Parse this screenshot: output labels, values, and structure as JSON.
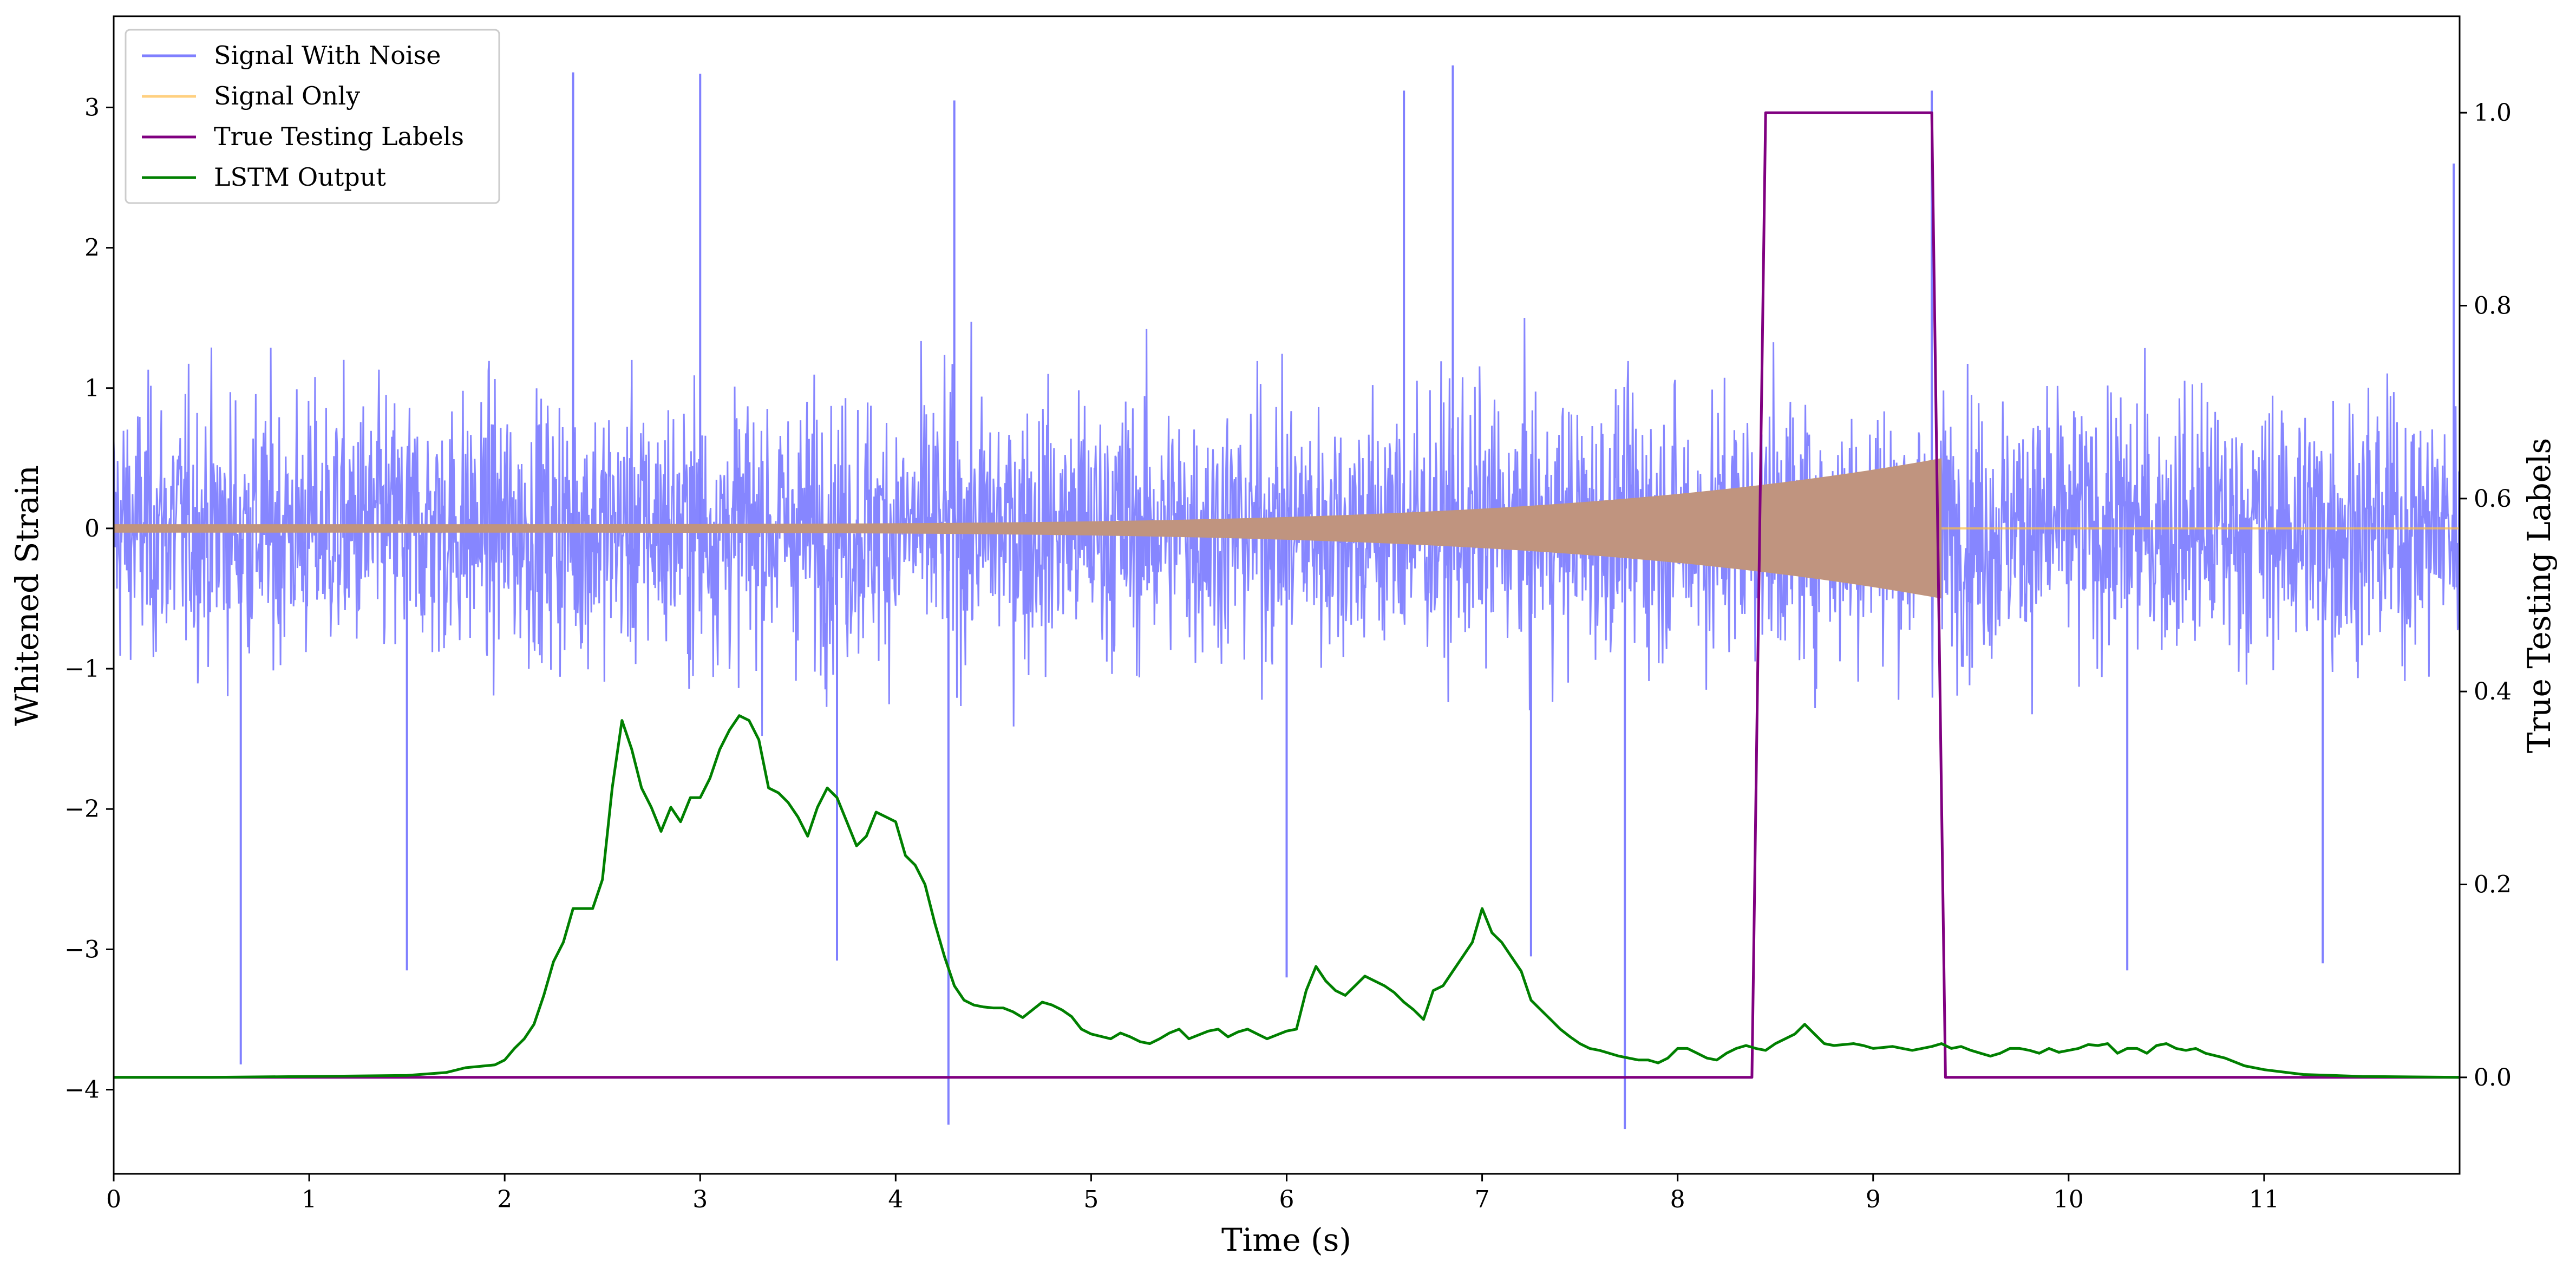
{
  "chart_data": {
    "type": "line",
    "title": "",
    "xlabel": "Time (s)",
    "ylabel_left": "Whitened Strain",
    "ylabel_right": "True Testing Labels",
    "xlim": [
      0,
      12
    ],
    "ylim_left": [
      -4.6,
      3.65
    ],
    "ylim_right": [
      -0.1,
      1.1
    ],
    "x_ticks": [
      "0",
      "1",
      "2",
      "3",
      "4",
      "5",
      "6",
      "7",
      "8",
      "9",
      "10",
      "11"
    ],
    "y_left_ticks": [
      "3",
      "2",
      "1",
      "0",
      "−1",
      "−2",
      "−3",
      "−4"
    ],
    "y_right_ticks": [
      "1.0",
      "0.8",
      "0.6",
      "0.4",
      "0.2",
      "0.0"
    ],
    "grid": false,
    "legend_position": "top-left",
    "series": [
      {
        "name": "Signal With Noise",
        "axis": "left",
        "color": "#8080ff",
        "description": "dense noise, envelope about ±1.5 with spikes up to about ±3.3",
        "envelope": 1.5,
        "spikes": [
          {
            "x": 0.65,
            "y": -3.82
          },
          {
            "x": 1.5,
            "y": -3.15
          },
          {
            "x": 2.35,
            "y": 3.25
          },
          {
            "x": 3.0,
            "y": 3.24
          },
          {
            "x": 3.7,
            "y": -3.08
          },
          {
            "x": 4.27,
            "y": -4.25
          },
          {
            "x": 4.3,
            "y": 3.05
          },
          {
            "x": 6.0,
            "y": -3.2
          },
          {
            "x": 6.6,
            "y": 3.12
          },
          {
            "x": 6.85,
            "y": 3.3
          },
          {
            "x": 7.25,
            "y": -3.05
          },
          {
            "x": 7.73,
            "y": -4.28
          },
          {
            "x": 9.3,
            "y": 3.12
          },
          {
            "x": 10.3,
            "y": -3.15
          },
          {
            "x": 11.3,
            "y": -3.1
          },
          {
            "x": 11.97,
            "y": 2.6
          }
        ]
      },
      {
        "name": "Signal Only",
        "axis": "left",
        "color": "#ffbf40",
        "description": "chirp from 0 s to about 9.35 s with amplitude growing from about 0.03 to about 0.5, then zero",
        "chirp_start": 0,
        "chirp_end": 9.35,
        "amp_start": 0.03,
        "amp_end": 0.5
      },
      {
        "name": "True Testing Labels",
        "axis": "right",
        "color": "#800080",
        "x": [
          0,
          8.38,
          8.45,
          9.3,
          9.37,
          12.0
        ],
        "y": [
          0,
          0,
          1,
          1,
          0,
          0
        ]
      },
      {
        "name": "LSTM Output",
        "axis": "right",
        "color": "#008000",
        "x": [
          0,
          0.5,
          1.0,
          1.5,
          1.7,
          1.8,
          1.9,
          1.95,
          2.0,
          2.05,
          2.1,
          2.15,
          2.2,
          2.25,
          2.3,
          2.35,
          2.4,
          2.45,
          2.5,
          2.55,
          2.6,
          2.65,
          2.7,
          2.75,
          2.8,
          2.85,
          2.9,
          2.95,
          3.0,
          3.05,
          3.1,
          3.15,
          3.2,
          3.25,
          3.3,
          3.35,
          3.4,
          3.45,
          3.5,
          3.55,
          3.6,
          3.65,
          3.7,
          3.75,
          3.8,
          3.85,
          3.9,
          3.95,
          4.0,
          4.05,
          4.1,
          4.15,
          4.2,
          4.25,
          4.3,
          4.35,
          4.4,
          4.45,
          4.5,
          4.55,
          4.6,
          4.65,
          4.7,
          4.75,
          4.8,
          4.85,
          4.9,
          4.95,
          5.0,
          5.1,
          5.15,
          5.2,
          5.25,
          5.3,
          5.35,
          5.4,
          5.45,
          5.5,
          5.55,
          5.6,
          5.65,
          5.7,
          5.75,
          5.8,
          5.85,
          5.9,
          5.95,
          6.0,
          6.05,
          6.1,
          6.15,
          6.2,
          6.25,
          6.3,
          6.35,
          6.4,
          6.45,
          6.5,
          6.55,
          6.6,
          6.65,
          6.7,
          6.75,
          6.8,
          6.85,
          6.9,
          6.95,
          7.0,
          7.05,
          7.1,
          7.15,
          7.2,
          7.25,
          7.3,
          7.35,
          7.4,
          7.45,
          7.5,
          7.55,
          7.6,
          7.7,
          7.8,
          7.85,
          7.9,
          7.95,
          8.0,
          8.05,
          8.1,
          8.15,
          8.2,
          8.25,
          8.3,
          8.35,
          8.4,
          8.45,
          8.5,
          8.55,
          8.6,
          8.65,
          8.7,
          8.75,
          8.8,
          8.85,
          8.9,
          8.95,
          9.0,
          9.05,
          9.1,
          9.15,
          9.2,
          9.25,
          9.3,
          9.35,
          9.4,
          9.45,
          9.5,
          9.55,
          9.6,
          9.65,
          9.7,
          9.75,
          9.8,
          9.85,
          9.9,
          9.95,
          10.0,
          10.05,
          10.1,
          10.15,
          10.2,
          10.25,
          10.3,
          10.35,
          10.4,
          10.45,
          10.5,
          10.55,
          10.6,
          10.65,
          10.7,
          10.8,
          10.9,
          11.0,
          11.2,
          11.5,
          12.0
        ],
        "y": [
          0.0,
          0.0,
          0.001,
          0.002,
          0.005,
          0.01,
          0.012,
          0.013,
          0.018,
          0.03,
          0.04,
          0.055,
          0.085,
          0.12,
          0.14,
          0.175,
          0.175,
          0.175,
          0.205,
          0.3,
          0.37,
          0.34,
          0.3,
          0.28,
          0.255,
          0.28,
          0.265,
          0.29,
          0.29,
          0.31,
          0.34,
          0.36,
          0.375,
          0.37,
          0.35,
          0.3,
          0.295,
          0.285,
          0.27,
          0.25,
          0.28,
          0.3,
          0.29,
          0.265,
          0.24,
          0.25,
          0.275,
          0.27,
          0.265,
          0.23,
          0.22,
          0.2,
          0.16,
          0.125,
          0.095,
          0.08,
          0.075,
          0.073,
          0.072,
          0.072,
          0.068,
          0.062,
          0.07,
          0.078,
          0.075,
          0.07,
          0.063,
          0.05,
          0.045,
          0.04,
          0.046,
          0.042,
          0.037,
          0.035,
          0.04,
          0.046,
          0.05,
          0.04,
          0.044,
          0.048,
          0.05,
          0.042,
          0.047,
          0.05,
          0.045,
          0.04,
          0.044,
          0.048,
          0.05,
          0.09,
          0.115,
          0.1,
          0.09,
          0.085,
          0.095,
          0.105,
          0.1,
          0.095,
          0.088,
          0.078,
          0.07,
          0.06,
          0.09,
          0.095,
          0.11,
          0.125,
          0.14,
          0.175,
          0.15,
          0.14,
          0.125,
          0.11,
          0.08,
          0.07,
          0.06,
          0.05,
          0.042,
          0.035,
          0.03,
          0.028,
          0.022,
          0.018,
          0.018,
          0.015,
          0.02,
          0.03,
          0.03,
          0.025,
          0.02,
          0.018,
          0.025,
          0.03,
          0.033,
          0.03,
          0.028,
          0.035,
          0.04,
          0.045,
          0.055,
          0.045,
          0.035,
          0.033,
          0.034,
          0.035,
          0.033,
          0.03,
          0.031,
          0.032,
          0.03,
          0.028,
          0.03,
          0.032,
          0.035,
          0.03,
          0.032,
          0.028,
          0.025,
          0.022,
          0.025,
          0.03,
          0.03,
          0.028,
          0.025,
          0.03,
          0.026,
          0.028,
          0.03,
          0.034,
          0.033,
          0.035,
          0.025,
          0.03,
          0.03,
          0.025,
          0.033,
          0.035,
          0.03,
          0.028,
          0.03,
          0.025,
          0.02,
          0.012,
          0.008,
          0.003,
          0.001,
          0.0
        ]
      }
    ]
  }
}
